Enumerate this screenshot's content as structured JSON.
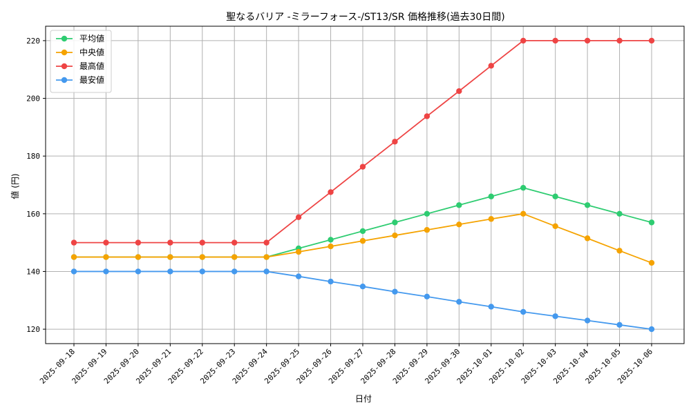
{
  "chart_data": {
    "type": "line",
    "title": "聖なるバリア -ミラーフォース-/ST13/SR 価格推移(過去30日間)",
    "xlabel": "日付",
    "ylabel": "値 (円)",
    "ylim": [
      115,
      225
    ],
    "yticks": [
      120,
      140,
      160,
      180,
      200,
      220
    ],
    "grid": true,
    "legend_position": "top-left",
    "categories": [
      "2025-09-18",
      "2025-09-19",
      "2025-09-20",
      "2025-09-21",
      "2025-09-22",
      "2025-09-23",
      "2025-09-24",
      "2025-09-25",
      "2025-09-26",
      "2025-09-27",
      "2025-09-28",
      "2025-09-29",
      "2025-09-30",
      "2025-10-01",
      "2025-10-02",
      "2025-10-03",
      "2025-10-04",
      "2025-10-05",
      "2025-10-06"
    ],
    "series": [
      {
        "name": "平均値",
        "color": "#2ecc71",
        "values": [
          145,
          145,
          145,
          145,
          145,
          145,
          145,
          148,
          151,
          154,
          157,
          160,
          163,
          166,
          169,
          166,
          163,
          160,
          157
        ]
      },
      {
        "name": "中央値",
        "color": "#f5a300",
        "values": [
          145,
          145,
          145,
          145,
          145,
          145,
          145,
          146.8,
          148.7,
          150.6,
          152.5,
          154.4,
          156.3,
          158.2,
          160,
          155.7,
          151.5,
          147.2,
          143
        ]
      },
      {
        "name": "最高値",
        "color": "#ee4444",
        "values": [
          150,
          150,
          150,
          150,
          150,
          150,
          150,
          158.8,
          167.5,
          176.3,
          185,
          193.8,
          202.5,
          211.3,
          220,
          220,
          220,
          220,
          220
        ]
      },
      {
        "name": "最安値",
        "color": "#4499ee",
        "values": [
          140,
          140,
          140,
          140,
          140,
          140,
          140,
          138.3,
          136.5,
          134.8,
          133,
          131.3,
          129.5,
          127.8,
          126,
          124.5,
          123,
          121.5,
          120
        ]
      }
    ]
  }
}
